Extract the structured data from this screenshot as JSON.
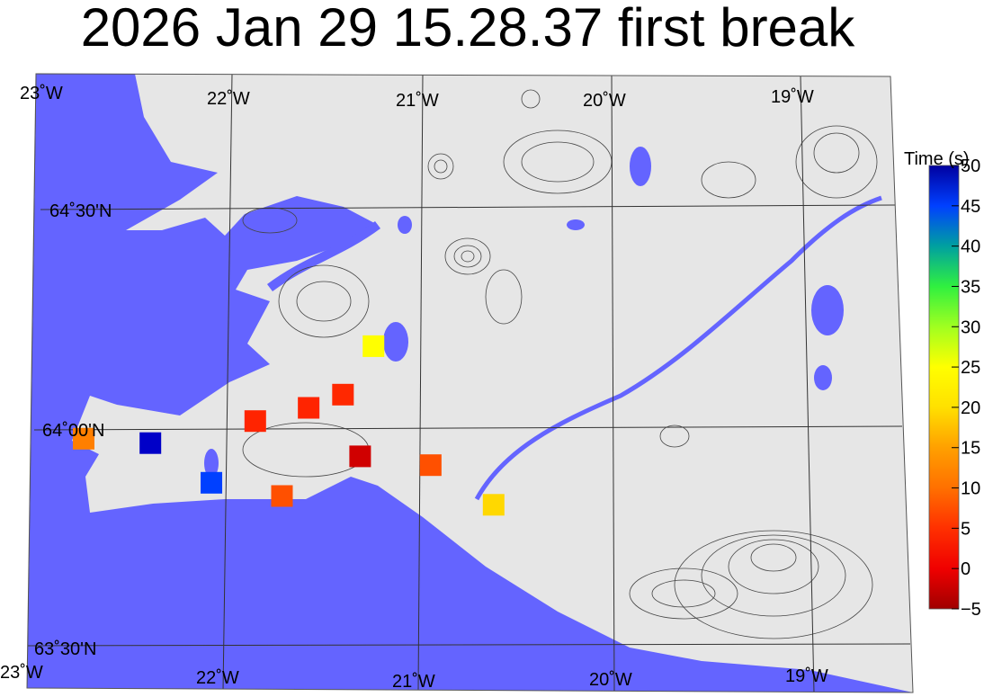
{
  "title": "2026 Jan 29 15.28.37 first break",
  "colors": {
    "sea": "#6464ff",
    "land": "#e6e6e6",
    "grid": "#333333",
    "contour": "#444444"
  },
  "map": {
    "lon_labels_top": [
      "23˚W",
      "22˚W",
      "21˚W",
      "20˚W",
      "19˚W"
    ],
    "lon_labels_bottom": [
      "23˚W",
      "22˚W",
      "21˚W",
      "20˚W",
      "19˚W"
    ],
    "lat_labels": [
      "64˚30'N",
      "64˚00'N",
      "63˚30'N"
    ],
    "lon_range": [
      -23,
      -18.7
    ],
    "lat_range": [
      63.45,
      64.75
    ]
  },
  "colorbar": {
    "title": "Time (s)",
    "ticks": [
      "50",
      "45",
      "40",
      "35",
      "30",
      "25",
      "20",
      "15",
      "10",
      "5",
      "0",
      "−5"
    ],
    "range": [
      -5,
      50
    ],
    "colormap": [
      "#a00000",
      "#f00000",
      "#ff3000",
      "#ff7000",
      "#ffa000",
      "#ffe000",
      "#ffff00",
      "#a0ff20",
      "#30f040",
      "#00a0a0",
      "#0040ff",
      "#0000a0"
    ]
  },
  "stations": [
    {
      "lon": -22.75,
      "lat": 63.98,
      "time": 12,
      "color": "#ff7f00"
    },
    {
      "lon": -22.4,
      "lat": 63.97,
      "time": 50,
      "color": "#0000c8"
    },
    {
      "lon": -22.08,
      "lat": 63.88,
      "time": 46,
      "color": "#0040ff"
    },
    {
      "lon": -21.85,
      "lat": 64.02,
      "time": 5,
      "color": "#ff2400"
    },
    {
      "lon": -21.71,
      "lat": 63.85,
      "time": 8,
      "color": "#ff5000"
    },
    {
      "lon": -21.57,
      "lat": 64.05,
      "time": 5,
      "color": "#ff2400"
    },
    {
      "lon": -21.39,
      "lat": 64.08,
      "time": 5,
      "color": "#ff2800"
    },
    {
      "lon": -21.23,
      "lat": 64.19,
      "time": 23,
      "color": "#ffff00"
    },
    {
      "lon": -21.3,
      "lat": 63.94,
      "time": 0,
      "color": "#d00000"
    },
    {
      "lon": -20.93,
      "lat": 63.92,
      "time": 8,
      "color": "#ff5000"
    },
    {
      "lon": -20.6,
      "lat": 63.83,
      "time": 18,
      "color": "#ffd800"
    }
  ]
}
